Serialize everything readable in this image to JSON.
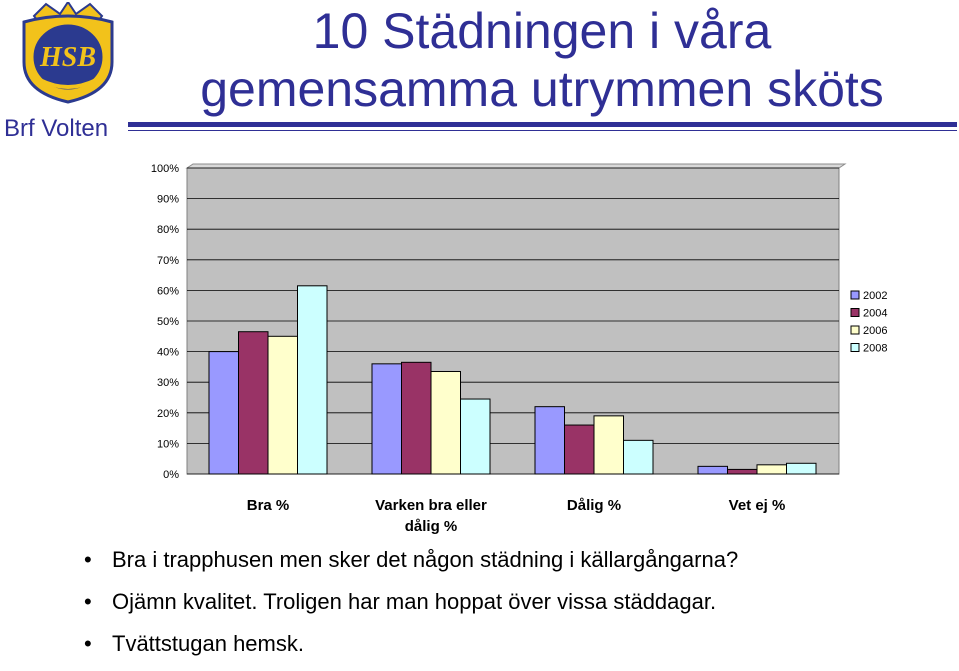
{
  "header": {
    "title_line1": "10 Städningen i våra",
    "title_line2": "gemensamma utrymmen sköts",
    "org_name": "Brf Volten",
    "logo_text": "HSB"
  },
  "colors": {
    "accent": "#2f2f95",
    "logo_blue": "#2b3a8f",
    "logo_gold": "#f2c21b"
  },
  "chart_data": {
    "type": "bar",
    "title": "",
    "xlabel": "",
    "ylabel": "",
    "ylim": [
      0,
      100
    ],
    "yticks": [
      "0%",
      "10%",
      "20%",
      "30%",
      "40%",
      "50%",
      "60%",
      "70%",
      "80%",
      "90%",
      "100%"
    ],
    "categories": [
      [
        "Bra %"
      ],
      [
        "Varken bra eller",
        "dålig %"
      ],
      [
        "Dålig %"
      ],
      [
        "Vet ej %"
      ]
    ],
    "series": [
      {
        "name": "2002",
        "color": "#9999ff",
        "values": [
          40,
          36,
          22,
          2.5
        ]
      },
      {
        "name": "2004",
        "color": "#993366",
        "values": [
          46.5,
          36.5,
          16,
          1.5
        ]
      },
      {
        "name": "2006",
        "color": "#ffffcc",
        "values": [
          45,
          33.5,
          19,
          3
        ]
      },
      {
        "name": "2008",
        "color": "#ccffff",
        "values": [
          61.5,
          24.5,
          11,
          3.5
        ]
      }
    ],
    "legend": "right",
    "grid": true
  },
  "bullets": [
    "Bra i trapphusen men sker det någon städning i källargångarna?",
    "Ojämn kvalitet. Troligen har man hoppat över vissa städdagar.",
    "Tvättstugan hemsk."
  ],
  "bullet_symbol": "•"
}
